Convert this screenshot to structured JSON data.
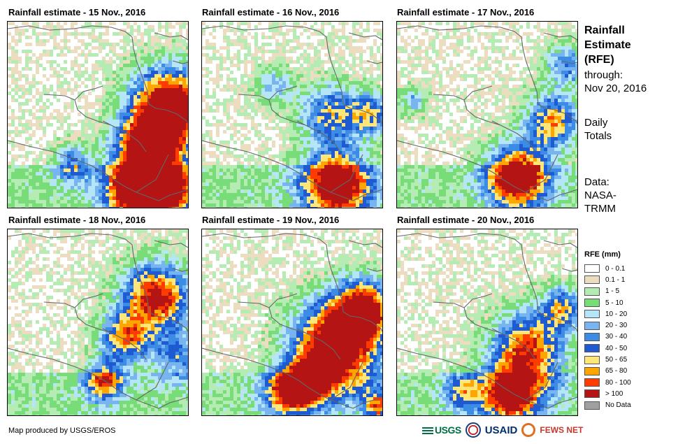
{
  "panels": [
    {
      "title": "Rainfall estimate - 15 Nov., 2016"
    },
    {
      "title": "Rainfall estimate - 16 Nov., 2016"
    },
    {
      "title": "Rainfall estimate - 17 Nov., 2016"
    },
    {
      "title": "Rainfall estimate - 18 Nov., 2016"
    },
    {
      "title": "Rainfall estimate - 19 Nov., 2016"
    },
    {
      "title": "Rainfall estimate - 20 Nov., 2016"
    }
  ],
  "sidebar": {
    "title_line1": "Rainfall",
    "title_line2": "Estimate",
    "title_line3": "(RFE)",
    "through_label": "through:",
    "through_date": "Nov 20, 2016",
    "totals_line1": "Daily",
    "totals_line2": "Totals",
    "data_line1": "Data:",
    "data_line2": "NASA-",
    "data_line3": "TRMM"
  },
  "legend": {
    "title": "RFE (mm)",
    "items": [
      {
        "label": "0 - 0.1",
        "color": "#ffffff"
      },
      {
        "label": "0.1 - 1",
        "color": "#ecdcc0"
      },
      {
        "label": "1 - 5",
        "color": "#b4ecb4"
      },
      {
        "label": "5 - 10",
        "color": "#78dc78"
      },
      {
        "label": "10 - 20",
        "color": "#b4e6f8"
      },
      {
        "label": "20 - 30",
        "color": "#78b4f0"
      },
      {
        "label": "30 - 40",
        "color": "#3c8ce6"
      },
      {
        "label": "40 - 50",
        "color": "#1e5ad2"
      },
      {
        "label": "50 - 65",
        "color": "#ffe678"
      },
      {
        "label": "65 - 80",
        "color": "#ffa500"
      },
      {
        "label": "80 - 100",
        "color": "#ff3c00"
      },
      {
        "label": "> 100",
        "color": "#b41414"
      },
      {
        "label": "No Data",
        "color": "#a0a0a0"
      }
    ]
  },
  "footer": {
    "credit": "Map produced by USGS/EROS"
  },
  "logos": {
    "usgs": "USGS",
    "usaid": "USAID",
    "fews": "FEWS NET"
  }
}
